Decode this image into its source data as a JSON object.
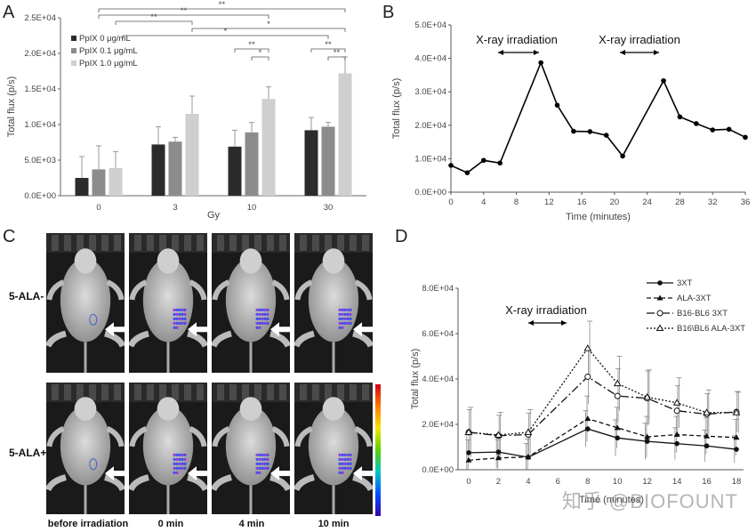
{
  "panels": {
    "A": {
      "letter": "A"
    },
    "B": {
      "letter": "B"
    },
    "C": {
      "letter": "C"
    },
    "D": {
      "letter": "D"
    }
  },
  "chart_data": [
    {
      "id": "A",
      "type": "bar",
      "ylabel": "Total flux (p/s)",
      "xlabel": "Gy",
      "ylim": [
        0,
        25000
      ],
      "yticks": [
        "0.0E+00",
        "5.0E+03",
        "1.0E+04",
        "1.5E+04",
        "2.0E+04",
        "2.5E+04"
      ],
      "categories": [
        "0",
        "3",
        "10",
        "30"
      ],
      "series": [
        {
          "name": "PpIX 0 μg/mL",
          "color": "#2b2b2b",
          "values": [
            2500,
            7200,
            6900,
            9200
          ],
          "errors": [
            3000,
            2500,
            2300,
            1800
          ]
        },
        {
          "name": "PpIX 0.1 μg/mL",
          "color": "#8c8c8c",
          "values": [
            3700,
            7600,
            8900,
            9700
          ],
          "errors": [
            3300,
            600,
            1400,
            600
          ]
        },
        {
          "name": "PpIX 1.0 μg/mL",
          "color": "#cfcfcf",
          "values": [
            3900,
            11500,
            13600,
            17200
          ],
          "errors": [
            2300,
            2500,
            1700,
            2300
          ]
        }
      ],
      "significance": [
        "**",
        "**",
        "**",
        "*",
        "*",
        "**",
        "*",
        "**",
        "**"
      ]
    },
    {
      "id": "B",
      "type": "line",
      "ylabel": "Total flux (p/s)",
      "xlabel": "Time (minutes)",
      "ylim": [
        0,
        50000
      ],
      "xlim": [
        0,
        36
      ],
      "yticks": [
        "0.0E+00",
        "1.0E+04",
        "2.0E+04",
        "3.0E+04",
        "4.0E+04",
        "5.0E+04"
      ],
      "xticks": [
        "0",
        "4",
        "8",
        "12",
        "16",
        "20",
        "24",
        "28",
        "32",
        "36"
      ],
      "annotations": [
        "X-ray irradiation",
        "X-ray irradiation"
      ],
      "x": [
        0,
        2,
        4,
        6,
        11,
        13,
        15,
        17,
        19,
        21,
        26,
        28,
        30,
        32,
        34,
        36
      ],
      "values": [
        8000,
        5800,
        9500,
        8700,
        38700,
        26000,
        18200,
        18100,
        17000,
        10800,
        33300,
        22500,
        20500,
        18600,
        18800,
        16400
      ]
    },
    {
      "id": "D",
      "type": "line",
      "ylabel": "Total flux (p/s)",
      "xlabel": "Time (minutes)",
      "ylim": [
        0,
        80000
      ],
      "xlim": [
        0,
        18
      ],
      "yticks": [
        "0.0E+00",
        "2.0E+04",
        "4.0E+04",
        "6.0E+04",
        "8.0E+04"
      ],
      "xticks": [
        "0",
        "2",
        "4",
        "6",
        "8",
        "10",
        "12",
        "14",
        "16",
        "18"
      ],
      "annotation": "X-ray irradiation",
      "x": [
        0,
        2,
        4,
        8,
        10,
        12,
        14,
        16,
        18
      ],
      "series": [
        {
          "name": "3XT",
          "dash": "",
          "marker": "circle-filled",
          "values": [
            7500,
            7800,
            5500,
            18000,
            14000,
            12500,
            11500,
            10500,
            9000
          ],
          "errors": [
            8000,
            7000,
            6000,
            8000,
            8000,
            8000,
            7000,
            7000,
            6000
          ]
        },
        {
          "name": "ALA-3XT",
          "dash": "5,3",
          "marker": "triangle-filled",
          "values": [
            4200,
            5200,
            5600,
            22500,
            18500,
            14500,
            15500,
            14800,
            14200
          ],
          "errors": [
            9000,
            8000,
            8000,
            10000,
            9000,
            9000,
            8000,
            8000,
            8000
          ]
        },
        {
          "name": "B16-BL6 3XT",
          "dash": "9,3,2,3",
          "marker": "circle-open",
          "values": [
            16500,
            15000,
            15500,
            41000,
            32500,
            31500,
            26000,
            24500,
            25500
          ],
          "errors": [
            10000,
            9000,
            9500,
            12000,
            12000,
            12000,
            11000,
            9000,
            9000
          ]
        },
        {
          "name": "B16\\BL6 ALA-3XT",
          "dash": "2,2",
          "marker": "triangle-open",
          "values": [
            16500,
            15300,
            16500,
            53500,
            38000,
            32000,
            29500,
            25200,
            25200
          ],
          "errors": [
            11000,
            10000,
            10000,
            12000,
            12000,
            12000,
            11000,
            10000,
            9000
          ]
        }
      ]
    }
  ],
  "panelC": {
    "rows": [
      "5-ALA-",
      "5-ALA+"
    ],
    "columns": [
      "before irradiation",
      "0 min",
      "4 min",
      "10 min"
    ]
  },
  "watermark": "知乎 @BIOFOUNT"
}
